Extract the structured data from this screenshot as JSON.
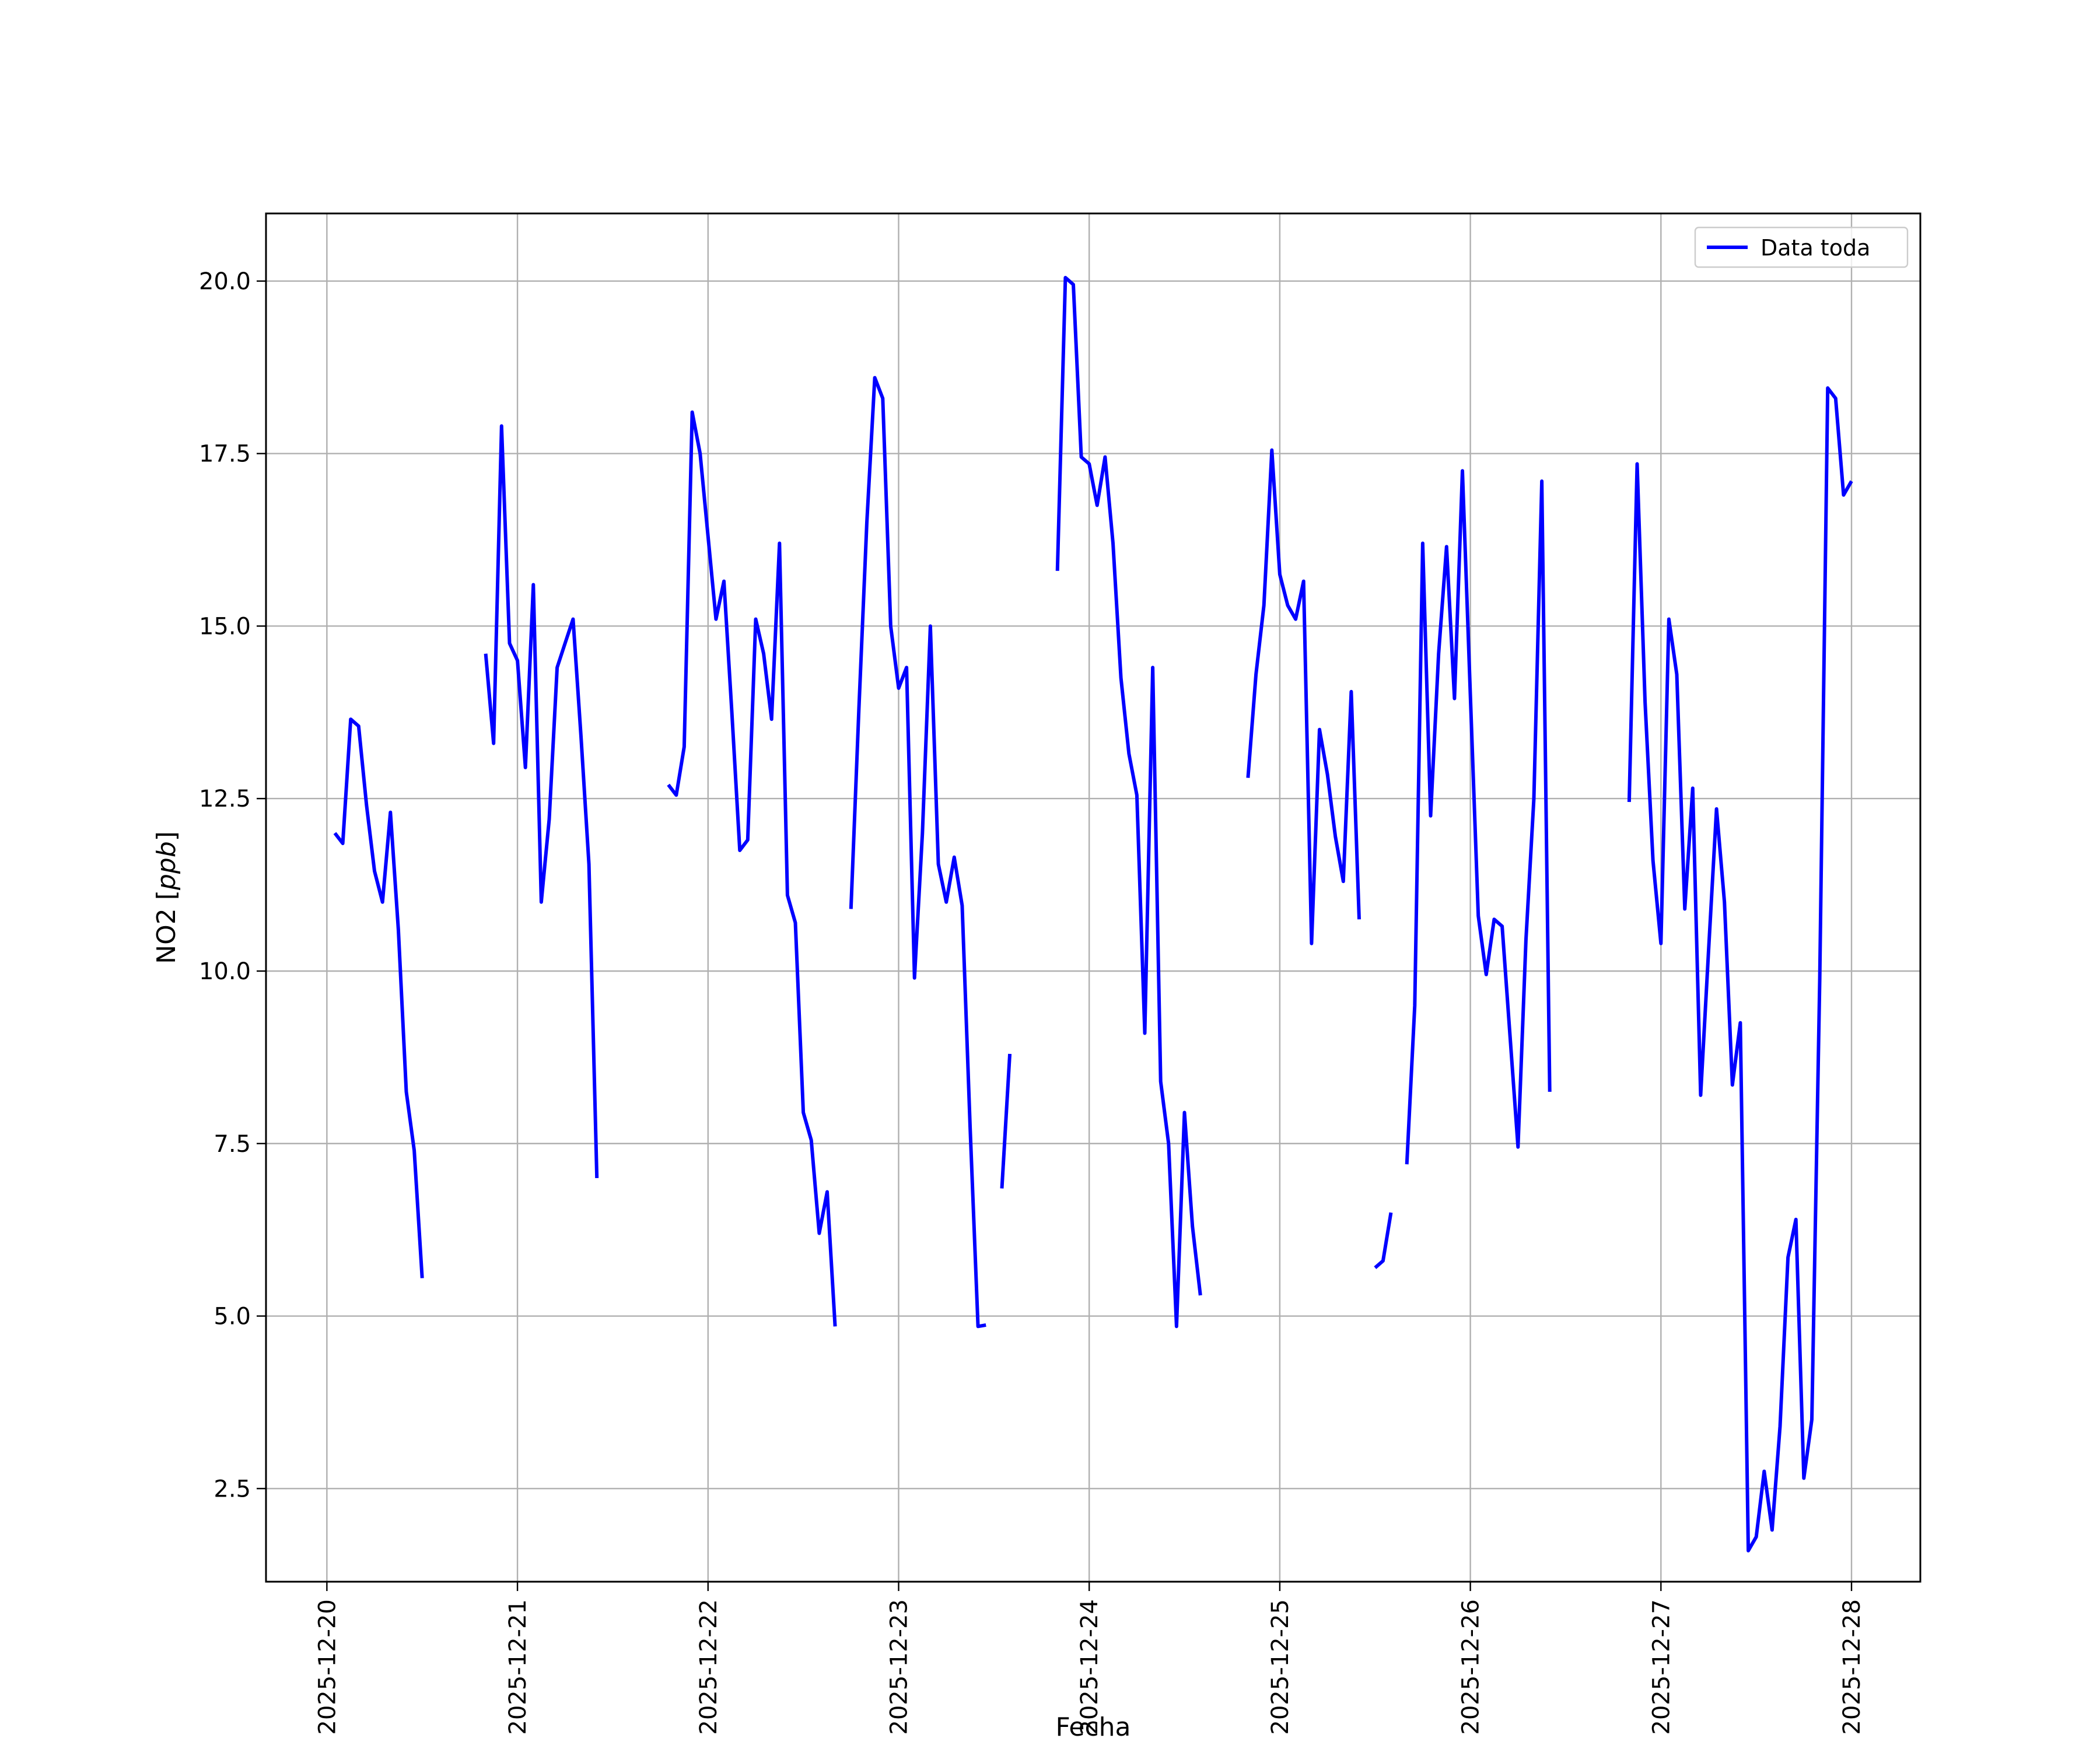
{
  "chart_data": {
    "type": "line",
    "title": "",
    "xlabel": "Fecha",
    "ylabel_main": "NO2 [",
    "ylabel_unit": "ppb",
    "ylabel_close": "]",
    "x_ticks": [
      "2025-12-20",
      "2025-12-21",
      "2025-12-22",
      "2025-12-23",
      "2025-12-24",
      "2025-12-25",
      "2025-12-26",
      "2025-12-27",
      "2025-12-28"
    ],
    "y_ticks": [
      "2.5",
      "5.0",
      "7.5",
      "10.0",
      "12.5",
      "15.0",
      "17.5",
      "20.0"
    ],
    "xlim": [
      "2025-12-19 16:20",
      "2025-12-28 08:40"
    ],
    "ylim": [
      1.15,
      20.98
    ],
    "grid": true,
    "legend_position": "top-right",
    "series": [
      {
        "name": "Data toda",
        "color": "#0000ff",
        "segments": [
          [
            [
              "2025-12-20 01:00",
              12.0
            ],
            [
              "2025-12-20 02:00",
              11.85
            ],
            [
              "2025-12-20 03:00",
              13.65
            ],
            [
              "2025-12-20 04:00",
              13.55
            ],
            [
              "2025-12-20 05:00",
              12.4
            ],
            [
              "2025-12-20 06:00",
              11.45
            ],
            [
              "2025-12-20 07:00",
              11.0
            ],
            [
              "2025-12-20 08:00",
              12.3
            ],
            [
              "2025-12-20 09:00",
              10.6
            ],
            [
              "2025-12-20 10:00",
              8.25
            ],
            [
              "2025-12-20 11:00",
              7.4
            ],
            [
              "2025-12-20 12:00",
              5.55
            ]
          ],
          [
            [
              "2025-12-20 20:00",
              14.6
            ],
            [
              "2025-12-20 21:00",
              13.3
            ],
            [
              "2025-12-20 22:00",
              17.9
            ],
            [
              "2025-12-20 23:00",
              14.75
            ],
            [
              "2025-12-21 00:00",
              14.5
            ],
            [
              "2025-12-21 01:00",
              12.95
            ],
            [
              "2025-12-21 02:00",
              15.6
            ],
            [
              "2025-12-21 03:00",
              11.0
            ],
            [
              "2025-12-21 04:00",
              12.2
            ],
            [
              "2025-12-21 05:00",
              14.4
            ],
            [
              "2025-12-21 06:00",
              14.75
            ],
            [
              "2025-12-21 07:00",
              15.1
            ],
            [
              "2025-12-21 08:00",
              13.4
            ],
            [
              "2025-12-21 09:00",
              11.55
            ],
            [
              "2025-12-21 10:00",
              7.0
            ]
          ],
          [
            [
              "2025-12-21 19:00",
              12.7
            ],
            [
              "2025-12-21 20:00",
              12.55
            ],
            [
              "2025-12-21 21:00",
              13.25
            ],
            [
              "2025-12-21 22:00",
              18.1
            ],
            [
              "2025-12-21 23:00",
              17.5
            ],
            [
              "2025-12-22 00:00",
              16.3
            ],
            [
              "2025-12-22 01:00",
              15.1
            ],
            [
              "2025-12-22 02:00",
              15.65
            ],
            [
              "2025-12-22 03:00",
              13.75
            ],
            [
              "2025-12-22 04:00",
              11.75
            ],
            [
              "2025-12-22 05:00",
              11.9
            ],
            [
              "2025-12-22 06:00",
              15.1
            ],
            [
              "2025-12-22 07:00",
              14.6
            ],
            [
              "2025-12-22 08:00",
              13.65
            ],
            [
              "2025-12-22 09:00",
              16.2
            ],
            [
              "2025-12-22 10:00",
              11.1
            ],
            [
              "2025-12-22 11:00",
              10.7
            ],
            [
              "2025-12-22 12:00",
              7.95
            ],
            [
              "2025-12-22 13:00",
              7.55
            ],
            [
              "2025-12-22 14:00",
              6.2
            ],
            [
              "2025-12-22 15:00",
              6.8
            ],
            [
              "2025-12-22 16:00",
              4.85
            ]
          ],
          [
            [
              "2025-12-22 18:00",
              10.9
            ],
            [
              "2025-12-22 19:00",
              13.8
            ],
            [
              "2025-12-22 20:00",
              16.5
            ],
            [
              "2025-12-22 21:00",
              18.6
            ],
            [
              "2025-12-22 22:00",
              18.3
            ],
            [
              "2025-12-22 23:00",
              15.0
            ],
            [
              "2025-12-23 00:00",
              14.1
            ],
            [
              "2025-12-23 01:00",
              14.4
            ],
            [
              "2025-12-23 02:00",
              9.9
            ],
            [
              "2025-12-23 03:00",
              12.0
            ],
            [
              "2025-12-23 04:00",
              15.0
            ],
            [
              "2025-12-23 05:00",
              11.55
            ],
            [
              "2025-12-23 06:00",
              11.0
            ],
            [
              "2025-12-23 07:00",
              11.65
            ],
            [
              "2025-12-23 08:00",
              10.95
            ],
            [
              "2025-12-23 09:00",
              7.75
            ],
            [
              "2025-12-23 10:00",
              4.85
            ],
            [
              "2025-12-23 11:00",
              4.87
            ]
          ],
          [
            [
              "2025-12-23 13:00",
              6.85
            ],
            [
              "2025-12-23 14:00",
              8.8
            ]
          ],
          [
            [
              "2025-12-23 20:00",
              15.8
            ],
            [
              "2025-12-23 21:00",
              20.05
            ],
            [
              "2025-12-23 22:00",
              19.95
            ],
            [
              "2025-12-23 23:00",
              17.45
            ],
            [
              "2025-12-24 00:00",
              17.35
            ],
            [
              "2025-12-24 01:00",
              16.75
            ],
            [
              "2025-12-24 02:00",
              17.45
            ],
            [
              "2025-12-24 03:00",
              16.2
            ],
            [
              "2025-12-24 04:00",
              14.25
            ],
            [
              "2025-12-24 05:00",
              13.15
            ],
            [
              "2025-12-24 06:00",
              12.55
            ],
            [
              "2025-12-24 07:00",
              9.1
            ],
            [
              "2025-12-24 08:00",
              14.4
            ],
            [
              "2025-12-24 09:00",
              8.4
            ],
            [
              "2025-12-24 10:00",
              7.5
            ],
            [
              "2025-12-24 11:00",
              4.85
            ],
            [
              "2025-12-24 12:00",
              7.95
            ],
            [
              "2025-12-24 13:00",
              6.3
            ],
            [
              "2025-12-24 14:00",
              5.3
            ]
          ],
          [
            [
              "2025-12-24 20:00",
              12.8
            ],
            [
              "2025-12-24 21:00",
              14.3
            ],
            [
              "2025-12-24 22:00",
              15.3
            ],
            [
              "2025-12-24 23:00",
              17.55
            ],
            [
              "2025-12-25 00:00",
              15.75
            ],
            [
              "2025-12-25 01:00",
              15.3
            ],
            [
              "2025-12-25 02:00",
              15.1
            ],
            [
              "2025-12-25 03:00",
              15.65
            ],
            [
              "2025-12-25 04:00",
              10.4
            ],
            [
              "2025-12-25 05:00",
              13.5
            ],
            [
              "2025-12-25 06:00",
              12.85
            ],
            [
              "2025-12-25 07:00",
              11.95
            ],
            [
              "2025-12-25 08:00",
              11.3
            ],
            [
              "2025-12-25 09:00",
              14.05
            ],
            [
              "2025-12-25 10:00",
              10.75
            ]
          ],
          [
            [
              "2025-12-25 12:00",
              5.7
            ],
            [
              "2025-12-25 13:00",
              5.8
            ],
            [
              "2025-12-25 14:00",
              6.5
            ]
          ],
          [
            [
              "2025-12-25 16:00",
              7.2
            ],
            [
              "2025-12-25 17:00",
              9.5
            ],
            [
              "2025-12-25 18:00",
              16.2
            ],
            [
              "2025-12-25 19:00",
              12.25
            ],
            [
              "2025-12-25 20:00",
              14.6
            ],
            [
              "2025-12-25 21:00",
              16.15
            ],
            [
              "2025-12-25 22:00",
              13.95
            ],
            [
              "2025-12-25 23:00",
              17.25
            ],
            [
              "2025-12-26 00:00",
              14.0
            ],
            [
              "2025-12-26 01:00",
              10.8
            ],
            [
              "2025-12-26 02:00",
              9.95
            ],
            [
              "2025-12-26 03:00",
              10.75
            ],
            [
              "2025-12-26 04:00",
              10.65
            ],
            [
              "2025-12-26 05:00",
              9.05
            ],
            [
              "2025-12-26 06:00",
              7.45
            ],
            [
              "2025-12-26 07:00",
              10.45
            ],
            [
              "2025-12-26 08:00",
              12.5
            ],
            [
              "2025-12-26 09:00",
              17.1
            ],
            [
              "2025-12-26 10:00",
              8.25
            ]
          ],
          [
            [
              "2025-12-26 20:00",
              12.45
            ],
            [
              "2025-12-26 21:00",
              17.35
            ],
            [
              "2025-12-26 22:00",
              13.9
            ],
            [
              "2025-12-26 23:00",
              11.6
            ],
            [
              "2025-12-27 00:00",
              10.4
            ],
            [
              "2025-12-27 01:00",
              15.1
            ],
            [
              "2025-12-27 02:00",
              14.3
            ],
            [
              "2025-12-27 03:00",
              10.9
            ],
            [
              "2025-12-27 04:00",
              12.65
            ],
            [
              "2025-12-27 05:00",
              8.2
            ],
            [
              "2025-12-27 06:00",
              10.3
            ],
            [
              "2025-12-27 07:00",
              12.35
            ],
            [
              "2025-12-27 08:00",
              11.0
            ],
            [
              "2025-12-27 09:00",
              8.35
            ],
            [
              "2025-12-27 10:00",
              9.25
            ],
            [
              "2025-12-27 11:00",
              1.6
            ],
            [
              "2025-12-27 12:00",
              1.8
            ],
            [
              "2025-12-27 13:00",
              2.75
            ],
            [
              "2025-12-27 14:00",
              1.9
            ],
            [
              "2025-12-27 15:00",
              3.4
            ],
            [
              "2025-12-27 16:00",
              5.85
            ],
            [
              "2025-12-27 17:00",
              6.4
            ],
            [
              "2025-12-27 18:00",
              2.65
            ],
            [
              "2025-12-27 19:00",
              3.5
            ],
            [
              "2025-12-27 20:00",
              9.9
            ],
            [
              "2025-12-27 21:00",
              18.45
            ],
            [
              "2025-12-27 22:00",
              18.3
            ],
            [
              "2025-12-27 23:00",
              16.9
            ],
            [
              "2025-12-28 00:00",
              17.1
            ]
          ]
        ]
      }
    ]
  }
}
